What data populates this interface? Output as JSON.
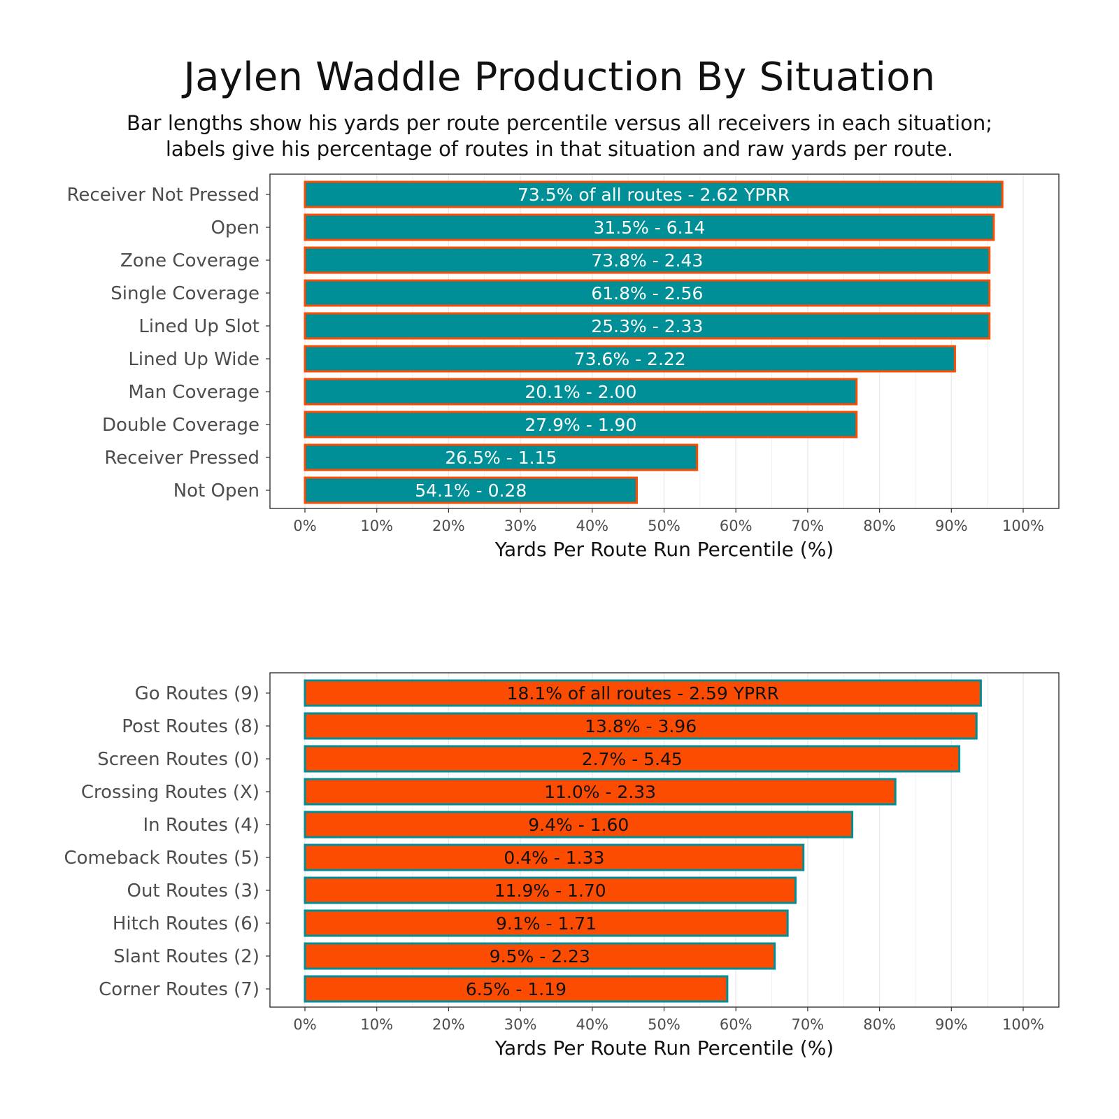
{
  "title": "Jaylen Waddle Production By Situation",
  "subtitle_lines": [
    "Bar lengths show his yards per route percentile versus all receivers in each situation;",
    "labels give his percentage of routes in that situation and raw yards per route."
  ],
  "colors": {
    "teal": "#008e97",
    "orange": "#fc4c02",
    "panel_border": "#333333",
    "grid": "#ebebeb"
  },
  "chart_data": [
    {
      "type": "bar",
      "orientation": "horizontal",
      "xlabel": "Yards Per Route Run Percentile (%)",
      "xlim": [
        0,
        100
      ],
      "ticks": [
        0,
        10,
        20,
        30,
        40,
        50,
        60,
        70,
        80,
        90,
        100
      ],
      "tick_labels": [
        "0%",
        "10%",
        "20%",
        "30%",
        "40%",
        "50%",
        "60%",
        "70%",
        "80%",
        "90%",
        "100%"
      ],
      "grid": true,
      "bar_fill": "#008e97",
      "bar_outline": "#fc4c02",
      "label_color": "#ffffff",
      "categories": [
        "Receiver Not Pressed",
        "Open",
        "Zone Coverage",
        "Single Coverage",
        "Lined Up Slot",
        "Lined Up Wide",
        "Man Coverage",
        "Double Coverage",
        "Receiver Pressed",
        "Not Open"
      ],
      "values": [
        97.1,
        95.9,
        95.3,
        95.3,
        95.3,
        90.5,
        76.8,
        76.8,
        54.6,
        46.2
      ],
      "labels": [
        "73.5% of all routes - 2.62 YPRR",
        "31.5% - 6.14",
        "73.8% - 2.43",
        "61.8% - 2.56",
        "25.3% - 2.33",
        "73.6% - 2.22",
        "20.1% - 2.00",
        "27.9% - 1.90",
        "26.5% - 1.15",
        "54.1% - 0.28"
      ]
    },
    {
      "type": "bar",
      "orientation": "horizontal",
      "xlabel": "Yards Per Route Run Percentile (%)",
      "xlim": [
        0,
        100
      ],
      "ticks": [
        0,
        10,
        20,
        30,
        40,
        50,
        60,
        70,
        80,
        90,
        100
      ],
      "tick_labels": [
        "0%",
        "10%",
        "20%",
        "30%",
        "40%",
        "50%",
        "60%",
        "70%",
        "80%",
        "90%",
        "100%"
      ],
      "grid": true,
      "bar_fill": "#fc4c02",
      "bar_outline": "#008e97",
      "label_color": "#111111",
      "categories": [
        "Go Routes (9)",
        "Post Routes (8)",
        "Screen Routes (0)",
        "Crossing Routes (X)",
        "In Routes (4)",
        "Comeback Routes (5)",
        "Out Routes (3)",
        "Hitch Routes (6)",
        "Slant Routes (2)",
        "Corner Routes (7)"
      ],
      "values": [
        94.1,
        93.5,
        91.1,
        82.2,
        76.2,
        69.4,
        68.3,
        67.2,
        65.4,
        58.8
      ],
      "labels": [
        "18.1% of all routes - 2.59 YPRR",
        "13.8% - 3.96",
        "2.7% - 5.45",
        "11.0% - 2.33",
        "9.4% - 1.60",
        "0.4% - 1.33",
        "11.9% - 1.70",
        "9.1% - 1.71",
        "9.5% - 2.23",
        "6.5% - 1.19"
      ]
    }
  ]
}
